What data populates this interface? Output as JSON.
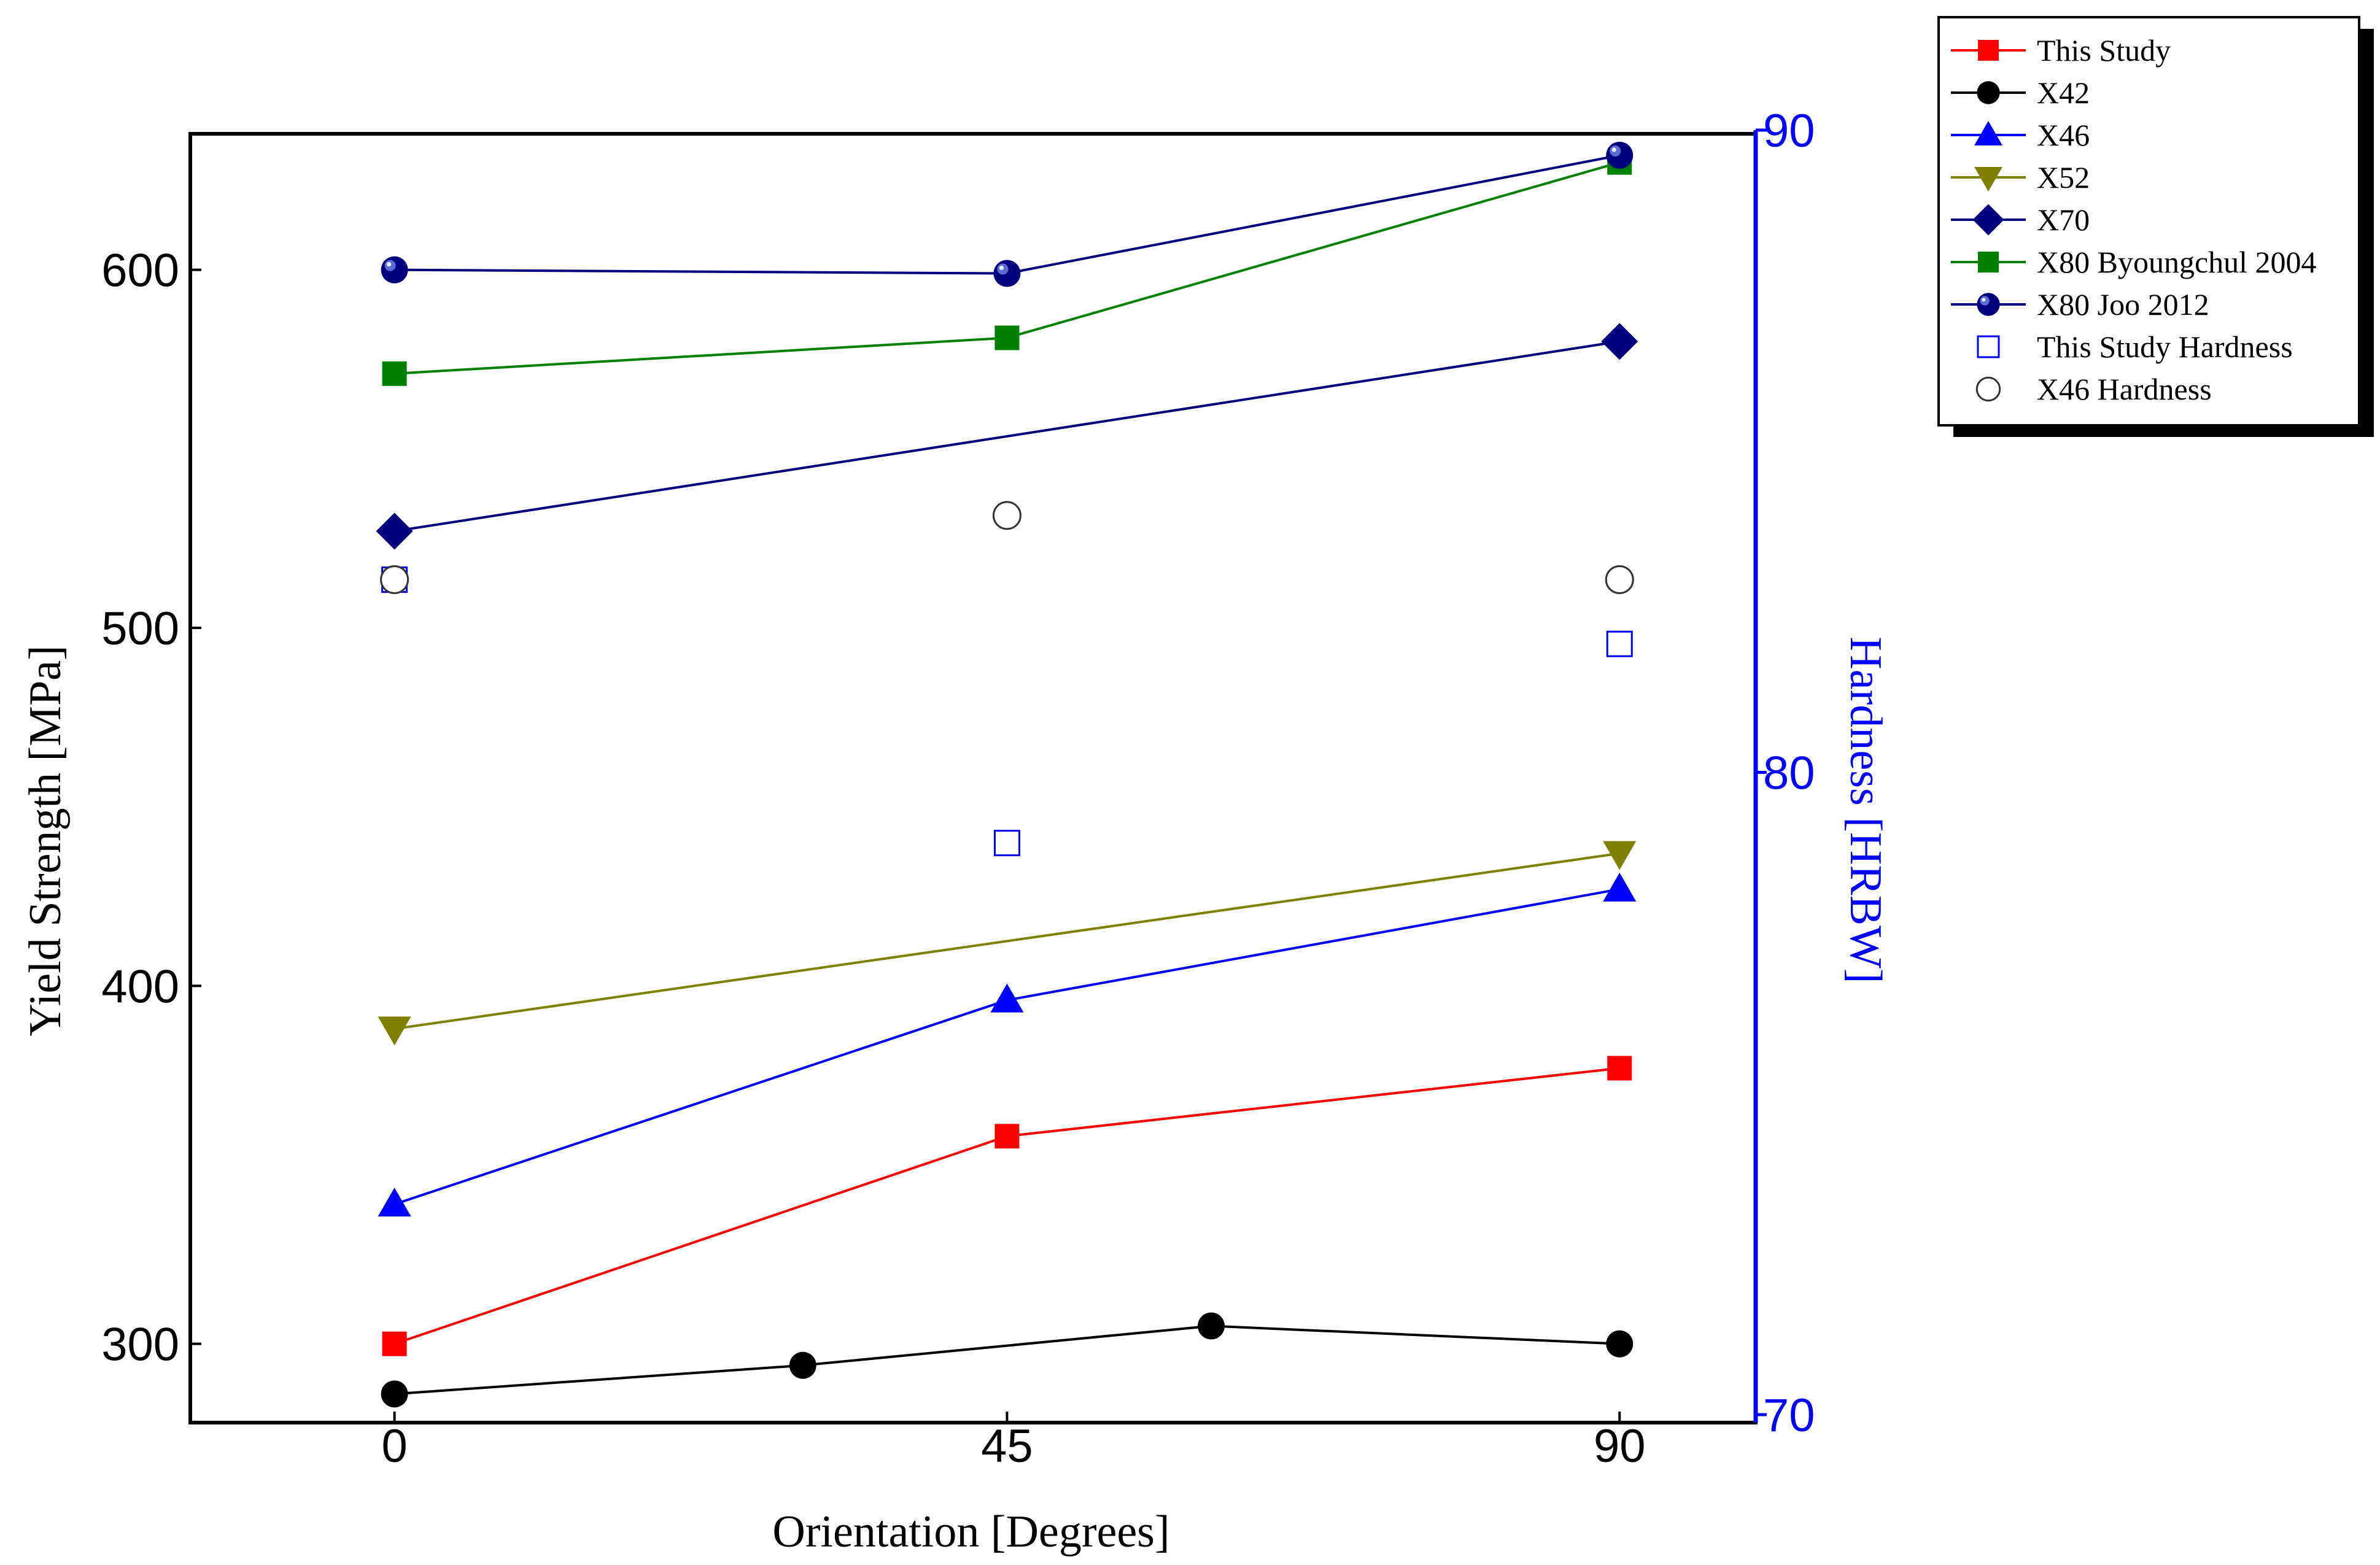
{
  "chart_data": {
    "type": "line",
    "title": "",
    "xlabel": "Orientation [Degrees]",
    "ylabel": "Yield Strength [MPa]",
    "y2label": "Hardness [HRBW]",
    "xlim": [
      -15,
      100
    ],
    "ylim": [
      278,
      638
    ],
    "y2lim": [
      70,
      90
    ],
    "xticks": [
      "0",
      "45",
      "90"
    ],
    "yticks": [
      "300",
      "400",
      "500",
      "600"
    ],
    "y2ticks": [
      "70",
      "80",
      "90"
    ],
    "legend_position": "top-right, outside plot",
    "colors": {
      "axis": "#000000",
      "right_axis": "#0000ff",
      "red": "#ff0000",
      "black": "#000000",
      "blue": "#0000ff",
      "olive": "#808000",
      "navy": "#00007f",
      "green": "#008000"
    },
    "series": [
      {
        "name": "This Study",
        "axis": "left",
        "marker": "square-filled",
        "color": "#ff0000",
        "line": true,
        "x": [
          0,
          45,
          90
        ],
        "y": [
          300,
          358,
          377
        ]
      },
      {
        "name": "X42",
        "axis": "left",
        "marker": "circle-filled",
        "color": "#000000",
        "line": true,
        "x": [
          0,
          30,
          60,
          90
        ],
        "y": [
          286,
          294,
          305,
          300
        ]
      },
      {
        "name": "X46",
        "axis": "left",
        "marker": "triangle-up-filled",
        "color": "#0000ff",
        "line": true,
        "x": [
          0,
          45,
          90
        ],
        "y": [
          339,
          396,
          427
        ]
      },
      {
        "name": "X52",
        "axis": "left",
        "marker": "triangle-down-filled",
        "color": "#808000",
        "line": true,
        "x": [
          0,
          90
        ],
        "y": [
          388,
          437
        ]
      },
      {
        "name": "X70",
        "axis": "left",
        "marker": "diamond-filled",
        "color": "#00007f",
        "line": true,
        "x": [
          0,
          90
        ],
        "y": [
          527,
          580
        ]
      },
      {
        "name": "X80 Byoungchul 2004",
        "axis": "left",
        "marker": "square-filled",
        "color": "#008000",
        "line": true,
        "x": [
          0,
          45,
          90
        ],
        "y": [
          571,
          581,
          630
        ]
      },
      {
        "name": "X80 Joo 2012",
        "axis": "left",
        "marker": "sphere",
        "color": "#00007f",
        "line": true,
        "x": [
          0,
          45,
          90
        ],
        "y": [
          600,
          599,
          632
        ]
      },
      {
        "name": "This Study Hardness",
        "axis": "right",
        "marker": "square-open",
        "color": "#0000ff",
        "line": false,
        "x": [
          0,
          45,
          90
        ],
        "y": [
          83.0,
          78.9,
          82.0
        ]
      },
      {
        "name": "X46 Hardness",
        "axis": "right",
        "marker": "circle-open",
        "color": "#000000",
        "line": false,
        "x": [
          0,
          45,
          90
        ],
        "y": [
          83.0,
          84.0,
          83.0
        ]
      }
    ]
  }
}
